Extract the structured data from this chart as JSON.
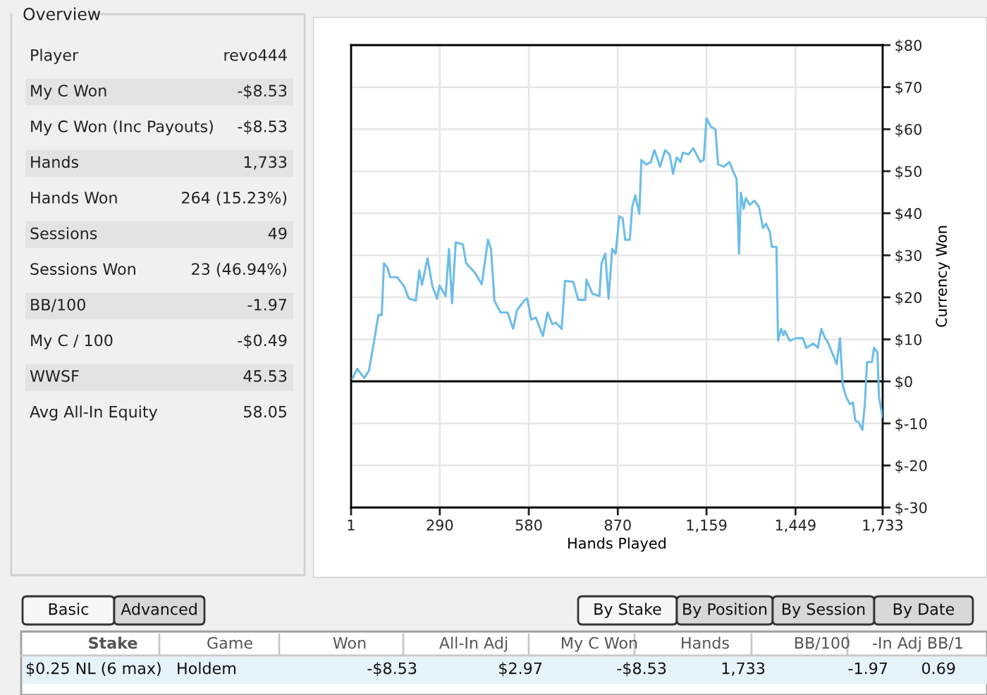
{
  "chart_data": [
    {
      "type": "other",
      "title": "Overview",
      "categories": [
        "Player",
        "My C Won",
        "My C Won (Inc Payouts)",
        "Hands",
        "Hands Won",
        "Sessions",
        "Sessions Won",
        "BB/100",
        "My C / 100",
        "WWSF",
        "Avg All-In Equity"
      ],
      "value_labels": [
        "revo444",
        "-$8.53",
        "-$8.53",
        "1,733",
        "264 (15.23%)",
        "49",
        "23 (46.94%)",
        "-1.97",
        "-$0.49",
        "45.53",
        "58.05"
      ]
    },
    {
      "type": "line",
      "xlabel": "Hands Played",
      "ylabel": "Currency Won",
      "xlim": [
        1,
        1733
      ],
      "ylim": [
        -30,
        80
      ],
      "xticks": [
        1,
        290,
        580,
        870,
        {
          "value": 1159,
          "label": "1,159"
        },
        {
          "value": 1449,
          "label": "1,449"
        },
        {
          "value": 1733,
          "label": "1,733"
        }
      ],
      "yticks": [
        {
          "value": -30,
          "label": "$-30"
        },
        {
          "value": -20,
          "label": "$-20"
        },
        {
          "value": -10,
          "label": "$-10"
        },
        {
          "value": 0,
          "label": "$0"
        },
        {
          "value": 10,
          "label": "$10"
        },
        {
          "value": 20,
          "label": "$20"
        },
        {
          "value": 30,
          "label": "$30"
        },
        {
          "value": 40,
          "label": "$40"
        },
        {
          "value": 50,
          "label": "$50"
        },
        {
          "value": 60,
          "label": "$60"
        },
        {
          "value": 70,
          "label": "$70"
        },
        {
          "value": 80,
          "label": "$80"
        }
      ],
      "grid": true,
      "legend": false,
      "marker": "none",
      "line_style": "solid",
      "ref_lines": [
        {
          "axis": "y",
          "value": 0,
          "color": "#000000"
        }
      ],
      "series": [
        {
          "color": "#6cbde8",
          "x": [
            6,
            21,
            44,
            59,
            75,
            90,
            101,
            108,
            120,
            128,
            151,
            174,
            189,
            212,
            223,
            232,
            250,
            266,
            281,
            289,
            309,
            320,
            330,
            342,
            365,
            376,
            404,
            427,
            447,
            457,
            468,
            488,
            511,
            529,
            542,
            565,
            575,
            588,
            603,
            626,
            641,
            657,
            668,
            687,
            698,
            725,
            741,
            764,
            768,
            787,
            810,
            817,
            829,
            840,
            852,
            863,
            875,
            886,
            894,
            909,
            917,
            927,
            940,
            947,
            962,
            978,
            989,
            1008,
            1024,
            1039,
            1050,
            1062,
            1074,
            1082,
            1100,
            1116,
            1139,
            1150,
            1159,
            1173,
            1188,
            1197,
            1216,
            1234,
            1246,
            1257,
            1265,
            1271,
            1280,
            1287,
            1300,
            1315,
            1330,
            1343,
            1353,
            1366,
            1372,
            1387,
            1392,
            1402,
            1410,
            1414,
            1430,
            1453,
            1473,
            1484,
            1507,
            1522,
            1533,
            1545,
            1553,
            1568,
            1583,
            1594,
            1603,
            1614,
            1626,
            1636,
            1644,
            1655,
            1667,
            1675,
            1682,
            1698,
            1705,
            1716,
            1721,
            1733
          ],
          "values": [
            0.8,
            3.0,
            0.8,
            2.5,
            9.1,
            15.8,
            15.8,
            28.1,
            27.0,
            24.8,
            24.8,
            22.6,
            19.7,
            19.2,
            26.4,
            23.0,
            29.3,
            22.6,
            19.7,
            22.8,
            20.3,
            31.5,
            18.6,
            33.1,
            32.6,
            28.1,
            25.9,
            23.1,
            33.7,
            31.5,
            19.2,
            16.4,
            16.4,
            12.5,
            17.0,
            19.2,
            19.7,
            14.7,
            15.2,
            10.8,
            16.4,
            13.6,
            14.0,
            12.5,
            23.9,
            23.7,
            19.4,
            19.4,
            24.2,
            20.9,
            20.3,
            28.1,
            30.4,
            19.7,
            31.5,
            30.4,
            39.3,
            38.8,
            33.7,
            33.7,
            41.5,
            44.3,
            39.9,
            52.7,
            51.6,
            52.2,
            55.0,
            51.1,
            55.0,
            54.0,
            49.4,
            53.3,
            52.2,
            54.4,
            54.0,
            55.5,
            52.2,
            52.7,
            62.6,
            60.6,
            60.0,
            51.6,
            51.1,
            52.2,
            49.9,
            48.2,
            30.4,
            44.9,
            41.0,
            43.6,
            42.0,
            43.0,
            41.5,
            36.5,
            37.5,
            35.4,
            32.0,
            32.0,
            9.7,
            12.5,
            11.0,
            12.0,
            9.7,
            10.3,
            10.3,
            8.0,
            9.0,
            8.0,
            12.5,
            10.3,
            9.5,
            6.9,
            4.1,
            10.3,
            -0.9,
            -3.7,
            -5.4,
            -5.0,
            -9.3,
            -9.8,
            -11.5,
            -5.4,
            4.6,
            4.6,
            8.0,
            6.9,
            -3.7,
            -8.5
          ]
        }
      ]
    },
    {
      "type": "other",
      "annotations": [
        "Basic",
        "Advanced",
        "By Stake",
        "By Position",
        "By Session",
        "By Date"
      ],
      "categories": [
        "Stake",
        "Game",
        "Won",
        "All-In Adj",
        "My C Won",
        "Hands",
        "BB/100",
        "-In Adj BB/1"
      ],
      "value_labels": [
        "$0.25 NL (6 max)",
        "Holdem",
        "-$8.53",
        "$2.97",
        "-$8.53",
        "1,733",
        "-1.97",
        "0.69"
      ]
    }
  ]
}
